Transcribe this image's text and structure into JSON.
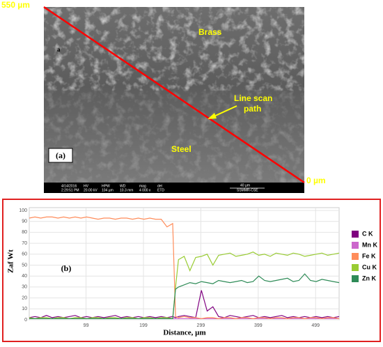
{
  "image": {
    "scale_start": "550 µm",
    "scale_end": "0 µm",
    "brass": "Brass",
    "marker": "a",
    "line_scan_1": "Line scan",
    "line_scan_2": "path",
    "steel": "Steel",
    "panel": "(a)",
    "info_bar": [
      "4/14/2016",
      "2:29:51 PM",
      "HV",
      "20.00 kV",
      "HPW",
      "104 µm",
      "WD",
      "10.3 mm",
      "mag",
      "4 000 x",
      "det",
      "ETD",
      "40 µm",
      "SSMMR-CSE"
    ]
  },
  "chart_data": {
    "type": "line",
    "panel": "(b)",
    "y_label": "Zaf Wt",
    "x_label": "Distance, µm",
    "xlim": [
      0,
      540
    ],
    "ylim": [
      0,
      100
    ],
    "xticks": [
      99,
      199,
      299,
      399,
      499
    ],
    "yticks": [
      0,
      10,
      20,
      30,
      40,
      50,
      60,
      70,
      80,
      90,
      100
    ],
    "grid": true,
    "x": [
      0,
      10,
      20,
      30,
      40,
      50,
      60,
      70,
      80,
      90,
      100,
      110,
      120,
      130,
      140,
      150,
      160,
      170,
      180,
      190,
      200,
      210,
      220,
      230,
      240,
      250,
      255,
      260,
      270,
      280,
      290,
      300,
      310,
      320,
      330,
      340,
      350,
      360,
      370,
      380,
      390,
      400,
      410,
      420,
      430,
      440,
      450,
      460,
      470,
      480,
      490,
      500,
      510,
      520,
      530,
      540
    ],
    "series": [
      {
        "name": "C  K",
        "color": "#800080",
        "values": [
          2,
          3,
          2,
          4,
          2,
          3,
          2,
          3,
          4,
          2,
          3,
          2,
          3,
          2,
          3,
          4,
          2,
          3,
          2,
          3,
          2,
          3,
          2,
          3,
          2,
          3,
          2,
          3,
          4,
          3,
          2,
          27,
          8,
          12,
          3,
          2,
          4,
          3,
          2,
          3,
          4,
          2,
          3,
          2,
          3,
          4,
          2,
          3,
          2,
          3,
          2,
          3,
          2,
          3,
          2,
          3
        ]
      },
      {
        "name": "Mn K",
        "color": "#cc66cc",
        "values": [
          1,
          1,
          1,
          1,
          1,
          1,
          1,
          1,
          1,
          1,
          1,
          1,
          1,
          1,
          1,
          1,
          1,
          1,
          1,
          1,
          1,
          1,
          1,
          1,
          1,
          1,
          1,
          1,
          1,
          1,
          1,
          1,
          1,
          1,
          1,
          1,
          1,
          1,
          1,
          1,
          1,
          1,
          1,
          1,
          1,
          1,
          1,
          1,
          1,
          1,
          1,
          1,
          1,
          1,
          1,
          1
        ]
      },
      {
        "name": "Fe K",
        "color": "#ff8c5a",
        "values": [
          93,
          94,
          93,
          94,
          94,
          93,
          94,
          93,
          94,
          93,
          94,
          93,
          92,
          93,
          93,
          92,
          93,
          93,
          92,
          93,
          92,
          93,
          92,
          92,
          85,
          88,
          3,
          2,
          3,
          2,
          2,
          1,
          2,
          2,
          1,
          2,
          2,
          1,
          2,
          2,
          1,
          2,
          2,
          1,
          2,
          2,
          1,
          2,
          2,
          1,
          2,
          2,
          1,
          2,
          2,
          1
        ]
      },
      {
        "name": "Cu K",
        "color": "#99cc33",
        "values": [
          2,
          1,
          2,
          2,
          1,
          2,
          2,
          1,
          2,
          2,
          1,
          2,
          2,
          1,
          2,
          2,
          1,
          2,
          2,
          1,
          2,
          2,
          1,
          2,
          2,
          1,
          30,
          55,
          58,
          45,
          57,
          58,
          60,
          50,
          59,
          60,
          61,
          58,
          59,
          60,
          62,
          59,
          60,
          58,
          61,
          60,
          59,
          61,
          60,
          58,
          59,
          60,
          61,
          59,
          60,
          61
        ]
      },
      {
        "name": "Zn K",
        "color": "#2e8b57",
        "values": [
          1,
          1,
          1,
          1,
          1,
          1,
          1,
          1,
          1,
          1,
          1,
          1,
          1,
          1,
          1,
          1,
          1,
          1,
          1,
          1,
          1,
          1,
          1,
          1,
          1,
          1,
          28,
          30,
          32,
          34,
          33,
          35,
          34,
          33,
          36,
          35,
          34,
          35,
          36,
          34,
          35,
          40,
          36,
          35,
          36,
          37,
          38,
          35,
          36,
          42,
          36,
          35,
          37,
          36,
          35,
          34
        ]
      }
    ]
  }
}
